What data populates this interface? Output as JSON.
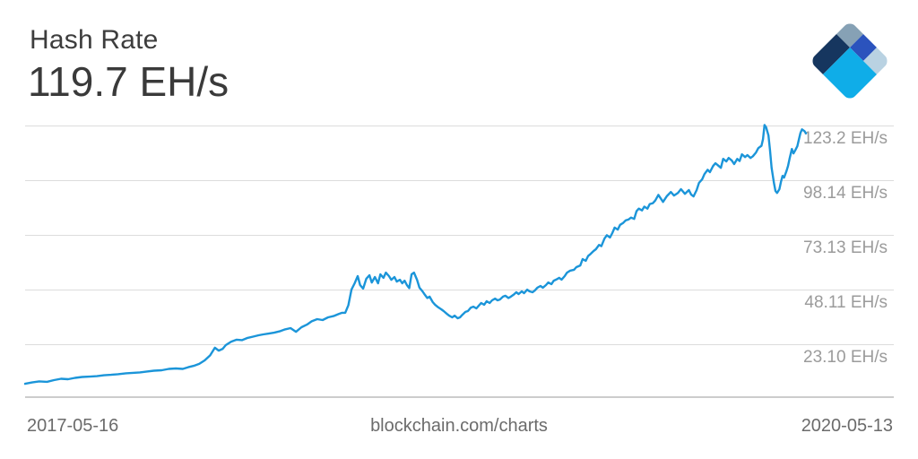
{
  "header": {
    "title": "Hash Rate",
    "current_value": "119.7 EH/s"
  },
  "logo": {
    "label": "blockchain-logo",
    "colors": {
      "slate": "#86a1b5",
      "royal": "#2b53bd",
      "navy": "#16365f",
      "cyan": "#0fade8",
      "pale": "#b9d2e2"
    }
  },
  "footer": {
    "start_date": "2017-05-16",
    "watermark": "blockchain.com/charts",
    "end_date": "2020-05-13"
  },
  "chart_data": {
    "type": "line",
    "title": "Hash Rate",
    "unit": "EH/s",
    "current_value": 119.7,
    "x_range": [
      "2017-05-16",
      "2020-05-13"
    ],
    "ylim": [
      -1.1,
      127
    ],
    "grid": true,
    "legend": false,
    "y_ticks": [
      {
        "value": 123.2,
        "label": "123.2 EH/s"
      },
      {
        "value": 98.14,
        "label": "98.14 EH/s"
      },
      {
        "value": 73.13,
        "label": "73.13 EH/s"
      },
      {
        "value": 48.11,
        "label": "48.11 EH/s"
      },
      {
        "value": 23.1,
        "label": "23.10 EH/s"
      }
    ],
    "series": [
      {
        "name": "hash-rate",
        "color": "#1b95d9",
        "points": [
          [
            0,
            5.0
          ],
          [
            0.9,
            5.6
          ],
          [
            1.8,
            6.1
          ],
          [
            2.8,
            5.9
          ],
          [
            3.7,
            6.7
          ],
          [
            4.6,
            7.3
          ],
          [
            5.5,
            7.1
          ],
          [
            6.4,
            7.7
          ],
          [
            7.3,
            8.1
          ],
          [
            8.3,
            8.3
          ],
          [
            9.2,
            8.5
          ],
          [
            10.1,
            8.9
          ],
          [
            11,
            9.1
          ],
          [
            11.9,
            9.4
          ],
          [
            12.9,
            9.8
          ],
          [
            13.8,
            10
          ],
          [
            14.7,
            10.2
          ],
          [
            15.6,
            10.6
          ],
          [
            16.5,
            11
          ],
          [
            17.5,
            11.2
          ],
          [
            18.4,
            11.8
          ],
          [
            19.3,
            12
          ],
          [
            20.2,
            11.8
          ],
          [
            20.9,
            12.6
          ],
          [
            21.6,
            13.2
          ],
          [
            22.3,
            14.1
          ],
          [
            23,
            15.7
          ],
          [
            23.7,
            18
          ],
          [
            24.3,
            21.5
          ],
          [
            24.8,
            20.2
          ],
          [
            25.3,
            21
          ],
          [
            25.7,
            22.7
          ],
          [
            26.4,
            24.3
          ],
          [
            27.1,
            25.2
          ],
          [
            27.8,
            25
          ],
          [
            28.5,
            26
          ],
          [
            29.2,
            26.6
          ],
          [
            29.9,
            27.2
          ],
          [
            30.5,
            27.6
          ],
          [
            31.2,
            28
          ],
          [
            31.9,
            28.4
          ],
          [
            32.6,
            29
          ],
          [
            33.3,
            29.9
          ],
          [
            34,
            30.5
          ],
          [
            34.7,
            28.8
          ],
          [
            35.4,
            30.9
          ],
          [
            36.1,
            32.1
          ],
          [
            36.7,
            33.6
          ],
          [
            37.4,
            34.6
          ],
          [
            38.1,
            34.2
          ],
          [
            38.8,
            35.4
          ],
          [
            39.5,
            36
          ],
          [
            40.2,
            37
          ],
          [
            40.6,
            37.5
          ],
          [
            41,
            37.5
          ],
          [
            41.4,
            41
          ],
          [
            41.8,
            48.2
          ],
          [
            42.2,
            51
          ],
          [
            42.6,
            54.3
          ],
          [
            42.9,
            50.2
          ],
          [
            43.3,
            48.6
          ],
          [
            43.7,
            53.1
          ],
          [
            44.1,
            54.7
          ],
          [
            44.4,
            51.4
          ],
          [
            44.8,
            53.9
          ],
          [
            45.2,
            51
          ],
          [
            45.5,
            55.1
          ],
          [
            45.9,
            53.5
          ],
          [
            46.2,
            55.9
          ],
          [
            46.6,
            54.3
          ],
          [
            46.9,
            52.6
          ],
          [
            47.3,
            53.9
          ],
          [
            47.6,
            51.8
          ],
          [
            48,
            52.6
          ],
          [
            48.3,
            51
          ],
          [
            48.6,
            52.2
          ],
          [
            48.9,
            50.2
          ],
          [
            49.2,
            48.8
          ],
          [
            49.5,
            55.1
          ],
          [
            49.8,
            55.9
          ],
          [
            50.2,
            52.6
          ],
          [
            50.5,
            49
          ],
          [
            50.9,
            47.3
          ],
          [
            51.2,
            45.7
          ],
          [
            51.5,
            44.3
          ],
          [
            51.8,
            44.9
          ],
          [
            52.2,
            42.4
          ],
          [
            52.5,
            41.2
          ],
          [
            52.9,
            40
          ],
          [
            53.3,
            39.1
          ],
          [
            53.6,
            38.3
          ],
          [
            54,
            37.1
          ],
          [
            54.3,
            36.2
          ],
          [
            54.7,
            35.4
          ],
          [
            55,
            36.2
          ],
          [
            55.4,
            35
          ],
          [
            55.7,
            35.4
          ],
          [
            56,
            36.6
          ],
          [
            56.4,
            37.9
          ],
          [
            56.7,
            38.3
          ],
          [
            57.1,
            39.9
          ],
          [
            57.4,
            40.3
          ],
          [
            57.8,
            39.5
          ],
          [
            58.1,
            40.8
          ],
          [
            58.4,
            42
          ],
          [
            58.8,
            41.2
          ],
          [
            59.1,
            42.8
          ],
          [
            59.5,
            42
          ],
          [
            59.8,
            43.2
          ],
          [
            60.2,
            44
          ],
          [
            60.5,
            43.2
          ],
          [
            60.8,
            43.6
          ],
          [
            61.2,
            44.9
          ],
          [
            61.5,
            45.3
          ],
          [
            61.9,
            44.3
          ],
          [
            62.2,
            44.9
          ],
          [
            62.6,
            45.9
          ],
          [
            62.9,
            46.9
          ],
          [
            63.2,
            46.1
          ],
          [
            63.6,
            47.3
          ],
          [
            63.9,
            46.5
          ],
          [
            64.3,
            48.1
          ],
          [
            64.6,
            47.3
          ],
          [
            65,
            46.9
          ],
          [
            65.3,
            47.8
          ],
          [
            65.6,
            49
          ],
          [
            66,
            49.8
          ],
          [
            66.3,
            49
          ],
          [
            66.7,
            50.2
          ],
          [
            67,
            51.4
          ],
          [
            67.4,
            50.6
          ],
          [
            67.7,
            52.2
          ],
          [
            68,
            52.7
          ],
          [
            68.4,
            53.5
          ],
          [
            68.7,
            52.7
          ],
          [
            69.1,
            54.3
          ],
          [
            69.4,
            55.9
          ],
          [
            69.8,
            56.8
          ],
          [
            70.3,
            57.2
          ],
          [
            70.6,
            58.4
          ],
          [
            71.1,
            59.2
          ],
          [
            71.4,
            62.1
          ],
          [
            71.8,
            61.3
          ],
          [
            72.1,
            63.5
          ],
          [
            72.4,
            64.4
          ],
          [
            72.8,
            65.8
          ],
          [
            73.1,
            66.6
          ],
          [
            73.5,
            68.6
          ],
          [
            73.8,
            68
          ],
          [
            74.2,
            71.5
          ],
          [
            74.5,
            73
          ],
          [
            74.9,
            72
          ],
          [
            75.2,
            74
          ],
          [
            75.5,
            76.5
          ],
          [
            75.9,
            75.6
          ],
          [
            76.2,
            77.8
          ],
          [
            76.6,
            78.7
          ],
          [
            76.9,
            79.8
          ],
          [
            77.3,
            80.3
          ],
          [
            77.6,
            81.1
          ],
          [
            78,
            80.5
          ],
          [
            78.3,
            84
          ],
          [
            78.6,
            85.2
          ],
          [
            79,
            84.4
          ],
          [
            79.3,
            86.1
          ],
          [
            79.7,
            85.2
          ],
          [
            80,
            87.3
          ],
          [
            80.4,
            87.7
          ],
          [
            80.7,
            88.9
          ],
          [
            81.1,
            91.5
          ],
          [
            81.4,
            89.9
          ],
          [
            81.7,
            88.3
          ],
          [
            82.2,
            91
          ],
          [
            82.7,
            92.8
          ],
          [
            83.1,
            91.2
          ],
          [
            83.6,
            92.4
          ],
          [
            84,
            94.1
          ],
          [
            84.5,
            92
          ],
          [
            85,
            93.7
          ],
          [
            85.3,
            91.6
          ],
          [
            85.6,
            90.8
          ],
          [
            86,
            93.7
          ],
          [
            86.3,
            97
          ],
          [
            86.7,
            98.6
          ],
          [
            87,
            101
          ],
          [
            87.4,
            103
          ],
          [
            87.7,
            101.9
          ],
          [
            88.1,
            104.7
          ],
          [
            88.4,
            106
          ],
          [
            88.7,
            105.1
          ],
          [
            89.1,
            103.9
          ],
          [
            89.4,
            108
          ],
          [
            89.8,
            106.8
          ],
          [
            90.1,
            108.4
          ],
          [
            90.5,
            107.2
          ],
          [
            90.8,
            105.6
          ],
          [
            91.2,
            108
          ],
          [
            91.5,
            107
          ],
          [
            91.8,
            110.1
          ],
          [
            92.2,
            108.8
          ],
          [
            92.5,
            109.7
          ],
          [
            92.9,
            108.4
          ],
          [
            93.2,
            109.2
          ],
          [
            93.6,
            110.9
          ],
          [
            93.9,
            112.9
          ],
          [
            94.3,
            114
          ],
          [
            94.5,
            117
          ],
          [
            94.7,
            123.5
          ],
          [
            94.9,
            122.4
          ],
          [
            95.2,
            118.7
          ],
          [
            95.4,
            112.1
          ],
          [
            95.6,
            103.9
          ],
          [
            95.9,
            97
          ],
          [
            96.1,
            93.3
          ],
          [
            96.3,
            92.4
          ],
          [
            96.6,
            94.1
          ],
          [
            96.8,
            97.4
          ],
          [
            97,
            100.2
          ],
          [
            97.2,
            99.4
          ],
          [
            97.5,
            102.3
          ],
          [
            97.7,
            104.7
          ],
          [
            97.9,
            108
          ],
          [
            98.2,
            112.5
          ],
          [
            98.4,
            110.5
          ],
          [
            98.6,
            111.7
          ],
          [
            98.9,
            113.8
          ],
          [
            99.1,
            117
          ],
          [
            99.3,
            119.9
          ],
          [
            99.5,
            121.5
          ],
          [
            99.8,
            120.7
          ],
          [
            100,
            119.7
          ]
        ]
      }
    ]
  }
}
